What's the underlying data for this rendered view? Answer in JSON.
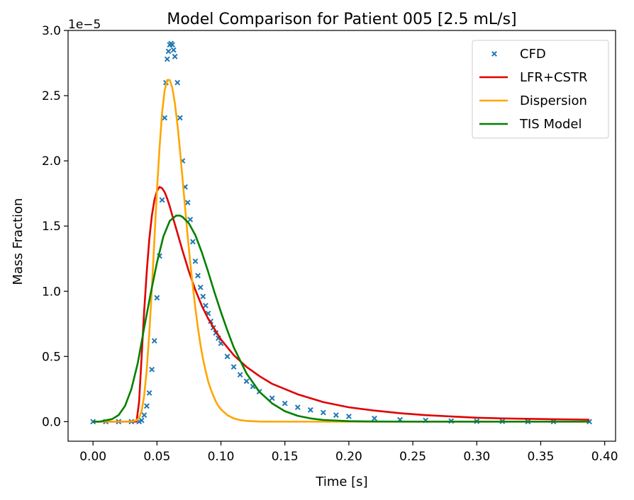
{
  "chart_data": {
    "type": "line",
    "title": "Model Comparison for Patient 005 [2.5 mL/s]",
    "xlabel": "Time [s]",
    "ylabel": "Mass Fraction",
    "y_offset_label": "1e−5",
    "xlim": [
      -0.0195,
      0.4085
    ],
    "ylim": [
      -0.15,
      3.0
    ],
    "x_ticks": [
      0.0,
      0.05,
      0.1,
      0.15,
      0.2,
      0.25,
      0.3,
      0.35,
      0.4
    ],
    "x_tick_labels": [
      "0.00",
      "0.05",
      "0.10",
      "0.15",
      "0.20",
      "0.25",
      "0.30",
      "0.35",
      "0.40"
    ],
    "y_ticks": [
      0.0,
      0.5,
      1.0,
      1.5,
      2.0,
      2.5,
      3.0
    ],
    "y_tick_labels": [
      "0.0",
      "0.5",
      "1.0",
      "1.5",
      "2.0",
      "2.5",
      "3.0"
    ],
    "grid": false,
    "legend_position": "upper right",
    "series": [
      {
        "name": "CFD",
        "kind": "scatter",
        "marker": "x",
        "color": "#1f77b4",
        "x": [
          0.0,
          0.01,
          0.02,
          0.03,
          0.036,
          0.038,
          0.04,
          0.042,
          0.044,
          0.046,
          0.048,
          0.05,
          0.052,
          0.054,
          0.056,
          0.057,
          0.058,
          0.059,
          0.06,
          0.061,
          0.062,
          0.063,
          0.064,
          0.066,
          0.068,
          0.07,
          0.072,
          0.074,
          0.076,
          0.078,
          0.08,
          0.082,
          0.084,
          0.086,
          0.088,
          0.09,
          0.092,
          0.094,
          0.096,
          0.098,
          0.1,
          0.105,
          0.11,
          0.115,
          0.12,
          0.125,
          0.13,
          0.14,
          0.15,
          0.16,
          0.17,
          0.18,
          0.19,
          0.2,
          0.22,
          0.24,
          0.26,
          0.28,
          0.3,
          0.32,
          0.34,
          0.36,
          0.388
        ],
        "y": [
          0.0,
          0.0,
          0.0,
          0.0,
          0.0,
          0.01,
          0.05,
          0.12,
          0.22,
          0.4,
          0.62,
          0.95,
          1.27,
          1.7,
          2.33,
          2.6,
          2.78,
          2.84,
          2.89,
          2.9,
          2.89,
          2.85,
          2.8,
          2.6,
          2.33,
          2.0,
          1.8,
          1.68,
          1.55,
          1.38,
          1.23,
          1.12,
          1.03,
          0.96,
          0.89,
          0.83,
          0.77,
          0.72,
          0.68,
          0.64,
          0.6,
          0.5,
          0.42,
          0.36,
          0.31,
          0.27,
          0.23,
          0.18,
          0.14,
          0.11,
          0.09,
          0.07,
          0.05,
          0.04,
          0.025,
          0.015,
          0.01,
          0.005,
          0.003,
          0.002,
          0.0,
          0.0,
          0.0
        ]
      },
      {
        "name": "LFR+CSTR",
        "kind": "line",
        "color": "#e00000",
        "x": [
          0.0,
          0.02,
          0.034,
          0.036,
          0.038,
          0.04,
          0.042,
          0.044,
          0.046,
          0.048,
          0.05,
          0.052,
          0.054,
          0.056,
          0.058,
          0.06,
          0.062,
          0.065,
          0.07,
          0.075,
          0.08,
          0.085,
          0.09,
          0.095,
          0.1,
          0.11,
          0.12,
          0.13,
          0.14,
          0.15,
          0.16,
          0.18,
          0.2,
          0.22,
          0.24,
          0.26,
          0.28,
          0.3,
          0.32,
          0.35,
          0.388
        ],
        "y": [
          0.0,
          0.0,
          0.0,
          0.15,
          0.5,
          0.85,
          1.15,
          1.4,
          1.58,
          1.7,
          1.77,
          1.8,
          1.79,
          1.76,
          1.71,
          1.65,
          1.58,
          1.48,
          1.31,
          1.15,
          1.01,
          0.89,
          0.79,
          0.71,
          0.63,
          0.51,
          0.42,
          0.35,
          0.29,
          0.25,
          0.21,
          0.15,
          0.11,
          0.085,
          0.065,
          0.05,
          0.04,
          0.03,
          0.025,
          0.02,
          0.015
        ]
      },
      {
        "name": "Dispersion",
        "kind": "line",
        "color": "#ffa500",
        "x": [
          0.0,
          0.02,
          0.03,
          0.034,
          0.036,
          0.038,
          0.04,
          0.042,
          0.044,
          0.046,
          0.048,
          0.05,
          0.052,
          0.054,
          0.056,
          0.058,
          0.06,
          0.062,
          0.064,
          0.066,
          0.068,
          0.07,
          0.072,
          0.074,
          0.076,
          0.078,
          0.08,
          0.082,
          0.084,
          0.086,
          0.088,
          0.09,
          0.092,
          0.094,
          0.096,
          0.098,
          0.1,
          0.105,
          0.11,
          0.115,
          0.12,
          0.13,
          0.14,
          0.15,
          0.17,
          0.2,
          0.388
        ],
        "y": [
          0.0,
          0.0,
          0.0,
          0.01,
          0.03,
          0.08,
          0.2,
          0.4,
          0.68,
          1.02,
          1.4,
          1.78,
          2.1,
          2.37,
          2.54,
          2.62,
          2.62,
          2.56,
          2.44,
          2.28,
          2.08,
          1.86,
          1.64,
          1.42,
          1.22,
          1.04,
          0.87,
          0.72,
          0.59,
          0.48,
          0.39,
          0.31,
          0.25,
          0.2,
          0.155,
          0.12,
          0.095,
          0.05,
          0.025,
          0.012,
          0.006,
          0.001,
          0.0,
          0.0,
          0.0,
          0.0,
          0.0
        ]
      },
      {
        "name": "TIS Model",
        "kind": "line",
        "color": "#008000",
        "x": [
          0.0,
          0.005,
          0.01,
          0.015,
          0.02,
          0.025,
          0.03,
          0.035,
          0.04,
          0.045,
          0.05,
          0.055,
          0.06,
          0.065,
          0.068,
          0.07,
          0.075,
          0.08,
          0.085,
          0.09,
          0.095,
          0.1,
          0.105,
          0.11,
          0.12,
          0.13,
          0.14,
          0.15,
          0.16,
          0.17,
          0.18,
          0.2,
          0.22,
          0.25,
          0.3,
          0.388
        ],
        "y": [
          0.0,
          0.0,
          0.01,
          0.02,
          0.05,
          0.12,
          0.25,
          0.45,
          0.72,
          0.98,
          1.22,
          1.42,
          1.54,
          1.58,
          1.58,
          1.57,
          1.52,
          1.43,
          1.3,
          1.15,
          0.99,
          0.84,
          0.7,
          0.57,
          0.37,
          0.23,
          0.14,
          0.08,
          0.045,
          0.025,
          0.013,
          0.004,
          0.001,
          0.0,
          0.0,
          0.0
        ]
      }
    ]
  }
}
